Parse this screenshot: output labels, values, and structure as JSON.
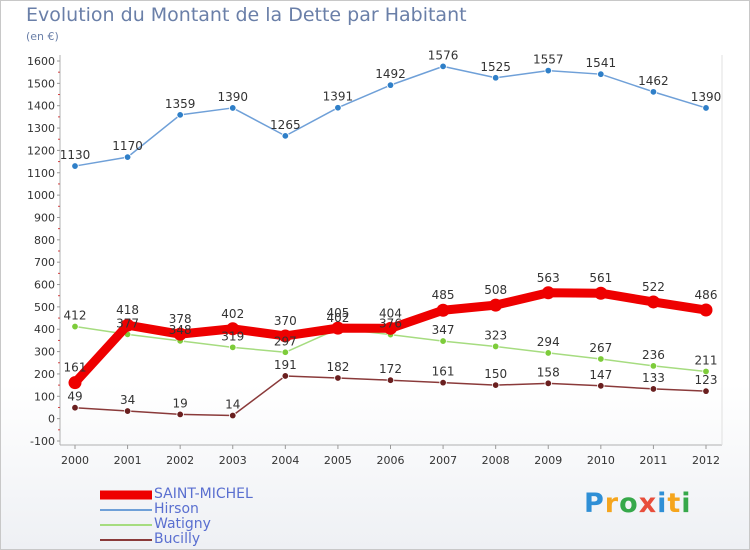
{
  "header": {
    "title": "Evolution du Montant de la Dette par Habitant",
    "subtitle": "(en €)"
  },
  "logo": {
    "letters": [
      "P",
      "r",
      "o",
      "x",
      "i",
      "t",
      "i"
    ],
    "colors": [
      "#2f8fd6",
      "#f5a51d",
      "#36a84a",
      "#e84d3b",
      "#2f8fd6",
      "#f5a51d",
      "#36a84a"
    ]
  },
  "chart_data": {
    "type": "line",
    "title": "Evolution du Montant de la Dette par Habitant",
    "ylabel": "(en €)",
    "xlabel": "",
    "categories": [
      "2000",
      "2001",
      "2002",
      "2003",
      "2004",
      "2005",
      "2006",
      "2007",
      "2008",
      "2009",
      "2010",
      "2011",
      "2012"
    ],
    "ylim": [
      -100,
      1600
    ],
    "yticks": [
      -100,
      0,
      100,
      200,
      300,
      400,
      500,
      600,
      700,
      800,
      900,
      1000,
      1100,
      1200,
      1300,
      1400,
      1500,
      1600
    ],
    "grid": false,
    "legend_position": "bottom-left",
    "series": [
      {
        "name": "SAINT-MICHEL",
        "values": [
          161,
          418,
          378,
          402,
          370,
          405,
          404,
          485,
          508,
          563,
          561,
          522,
          486
        ],
        "color": "#ee0000",
        "marker": "#ee0000",
        "bold": true
      },
      {
        "name": "Hirson",
        "values": [
          1130,
          1170,
          1359,
          1390,
          1265,
          1391,
          1492,
          1576,
          1525,
          1557,
          1541,
          1462,
          1390
        ],
        "color": "#6fa0d8",
        "marker": "#2f7fc8",
        "bold": false
      },
      {
        "name": "Watigny",
        "values": [
          412,
          377,
          348,
          319,
          297,
          402,
          376,
          347,
          323,
          294,
          267,
          236,
          211
        ],
        "color": "#a6dc80",
        "marker": "#7dcc3a",
        "bold": false
      },
      {
        "name": "Bucilly",
        "values": [
          49,
          34,
          19,
          14,
          191,
          182,
          172,
          161,
          150,
          158,
          147,
          133,
          123
        ],
        "color": "#8a3a3a",
        "marker": "#6a1f1f",
        "bold": false
      }
    ]
  }
}
